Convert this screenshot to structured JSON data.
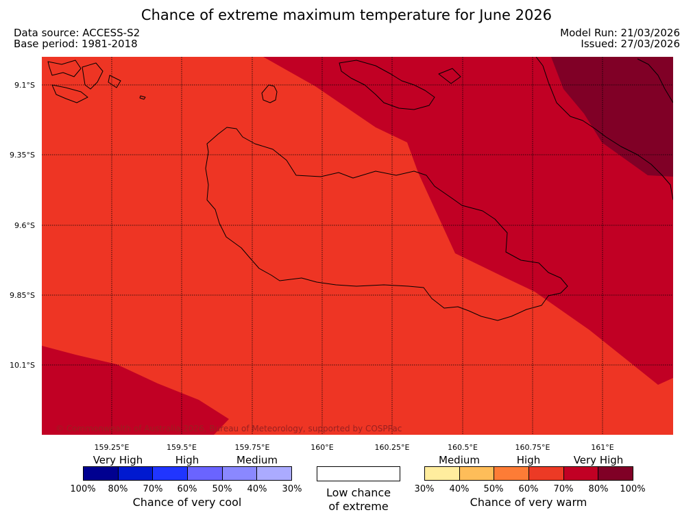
{
  "title": "Chance of extreme maximum temperature for June 2026",
  "meta": {
    "data_source": "Data source: ACCESS-S2",
    "base_period": "Base period: 1981-2018",
    "model_run": "Model Run: 21/03/2026",
    "issued": "Issued: 27/03/2026"
  },
  "map": {
    "lat_labels": [
      "9.1°S",
      "9.35°S",
      "9.6°S",
      "9.85°S",
      "10.1°S"
    ],
    "lon_labels": [
      "159.25°E",
      "159.5°E",
      "159.75°E",
      "160°E",
      "160.25°E",
      "160.5°E",
      "160.75°E",
      "161°E"
    ],
    "copyright": "© Commonwealth of Australia 2026, Bureau of Meteorology, supported by COSPPac",
    "colors": {
      "p60_70": "#ee3524",
      "p70_80": "#c10024",
      "p80_100": "#800026",
      "coast": "#000000"
    }
  },
  "legend": {
    "cool": {
      "categories": [
        "Very High",
        "High",
        "Medium"
      ],
      "percents": [
        "100%",
        "80%",
        "70%",
        "60%",
        "50%",
        "40%",
        "30%"
      ],
      "colors": [
        "#000090",
        "#0019d0",
        "#2035ff",
        "#6a64ff",
        "#8a88ff",
        "#ababff"
      ],
      "title": "Chance of very cool"
    },
    "neutral": {
      "line1": "Low chance",
      "line2": "of extreme"
    },
    "warm": {
      "categories": [
        "Medium",
        "High",
        "Very High"
      ],
      "percents": [
        "30%",
        "40%",
        "50%",
        "60%",
        "70%",
        "80%",
        "100%"
      ],
      "colors": [
        "#ffed9e",
        "#febd59",
        "#fd7c36",
        "#ec3a25",
        "#c10024",
        "#800026"
      ],
      "title": "Chance of very warm"
    }
  }
}
